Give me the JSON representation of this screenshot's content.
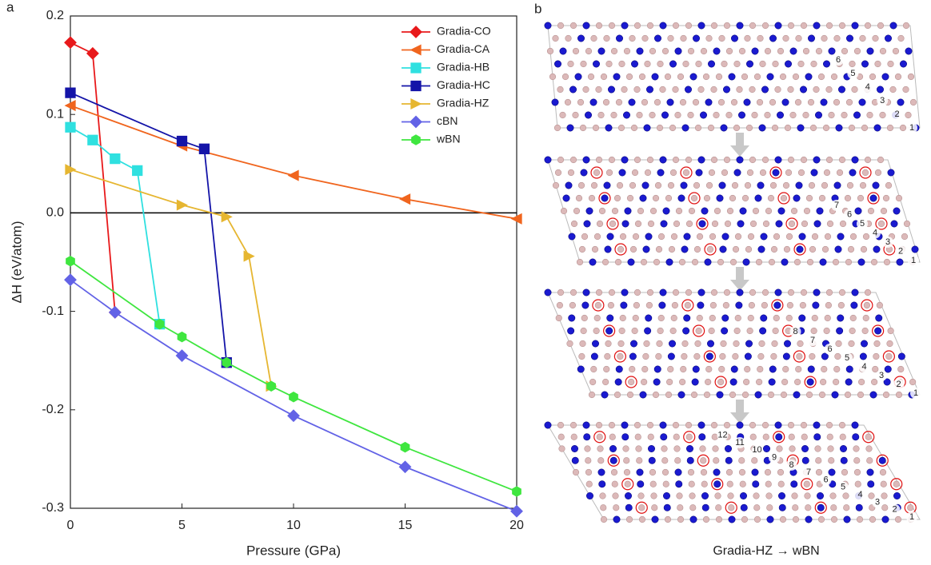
{
  "panel_labels": [
    "a",
    "b"
  ],
  "chart_data": {
    "type": "line",
    "x_label": "Pressure (GPa)",
    "y_label": "ΔH (eV/atom)",
    "xlim": [
      0,
      20
    ],
    "xticks": [
      0,
      5,
      10,
      15,
      20
    ],
    "ylim": [
      -0.3,
      0.2
    ],
    "yticks": [
      -0.3,
      -0.2,
      -0.1,
      {
        "value": 0,
        "label": "0.0"
      },
      0.1,
      0.2
    ],
    "hline": 0,
    "legend": "top-right",
    "series": [
      {
        "name": "Gradia-CO",
        "color": "#e8191b",
        "marker": "diamond",
        "x": [
          0,
          1,
          2
        ],
        "values": [
          0.173,
          0.162,
          -0.101
        ]
      },
      {
        "name": "Gradia-CA",
        "color": "#f0651e",
        "marker": "triangle-left",
        "x": [
          0,
          5,
          10,
          15,
          20
        ],
        "values": [
          0.109,
          0.068,
          0.038,
          0.014,
          -0.006
        ]
      },
      {
        "name": "Gradia-HB",
        "color": "#2fe0e0",
        "marker": "square",
        "x": [
          0,
          1,
          2,
          3,
          4
        ],
        "values": [
          0.087,
          0.074,
          0.055,
          0.043,
          -0.113
        ]
      },
      {
        "name": "Gradia-HC",
        "color": "#1414a8",
        "marker": "square",
        "x": [
          0,
          5,
          6,
          7
        ],
        "values": [
          0.122,
          0.073,
          0.065,
          -0.152
        ]
      },
      {
        "name": "Gradia-HZ",
        "color": "#e6b631",
        "marker": "triangle-right",
        "x": [
          0,
          5,
          7,
          8,
          9
        ],
        "values": [
          0.044,
          0.008,
          -0.004,
          -0.044,
          -0.176
        ]
      },
      {
        "name": "cBN",
        "color": "#6262e6",
        "marker": "diamond",
        "x": [
          0,
          2,
          5,
          10,
          15,
          20
        ],
        "values": [
          -0.068,
          -0.101,
          -0.145,
          -0.206,
          -0.258,
          -0.303
        ]
      },
      {
        "name": "wBN",
        "color": "#3fe63f",
        "marker": "hexagon",
        "x": [
          0,
          4,
          5,
          7,
          9,
          10,
          15,
          20
        ],
        "values": [
          -0.049,
          -0.113,
          -0.126,
          -0.152,
          -0.176,
          -0.187,
          -0.238,
          -0.283
        ]
      }
    ]
  },
  "panel_b": {
    "caption": "Gradia-HZ → wBN",
    "frames": [
      {
        "labels": [
          "1",
          "2",
          "3",
          "4",
          "5",
          "6"
        ]
      },
      {
        "labels": [
          "1",
          "2",
          "3",
          "4",
          "5",
          "6",
          "7"
        ]
      },
      {
        "labels": [
          "1",
          "2",
          "3",
          "4",
          "5",
          "6",
          "7",
          "8"
        ]
      },
      {
        "labels": [
          "1",
          "2",
          "3",
          "4",
          "5",
          "6",
          "7",
          "8",
          "9",
          "10",
          "11",
          "12"
        ]
      }
    ]
  }
}
